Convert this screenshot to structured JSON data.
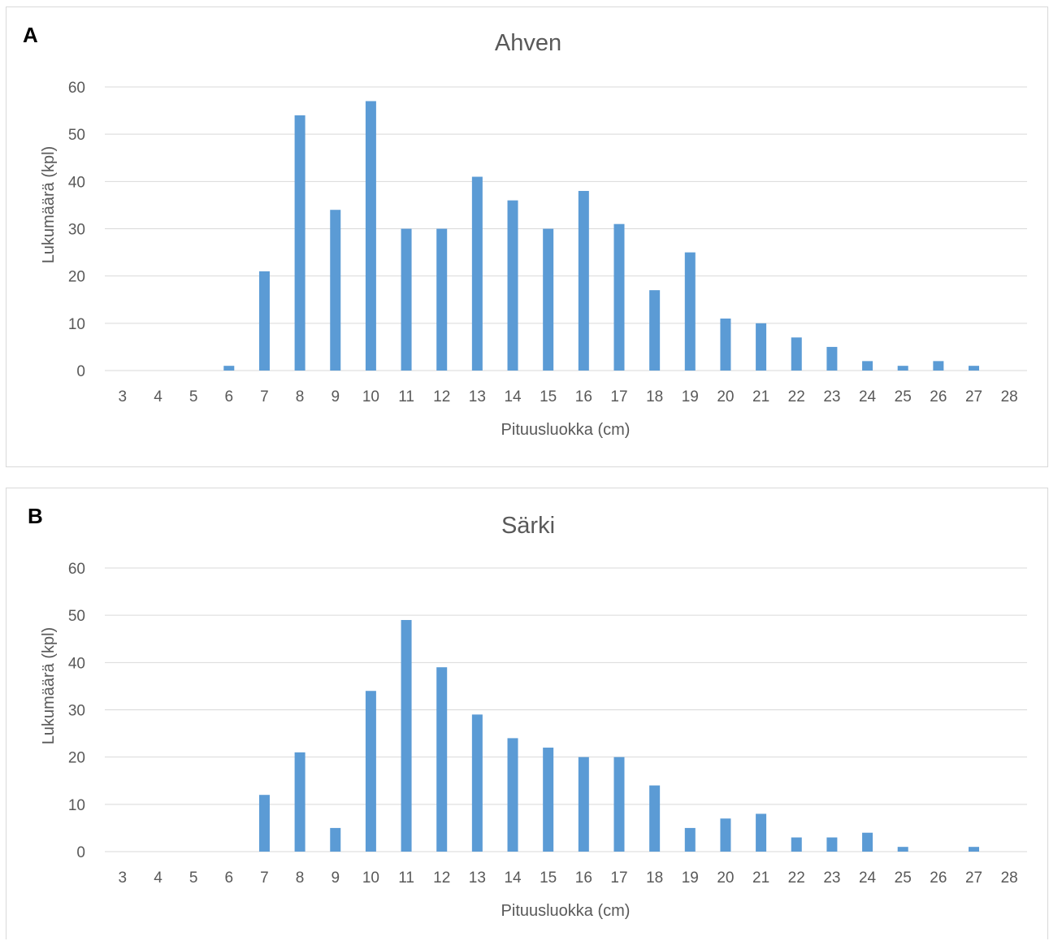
{
  "colors": {
    "bar": "#5b9bd5",
    "grid": "#d9d9d9",
    "text": "#595959"
  },
  "chart_data": [
    {
      "panel_label": "A",
      "type": "bar",
      "title": "Ahven",
      "xlabel": "Pituusluokka (cm)",
      "ylabel": "Lukumäärä (kpl)",
      "ylim": [
        0,
        60
      ],
      "yticks": [
        0,
        10,
        20,
        30,
        40,
        50,
        60
      ],
      "grid": true,
      "categories": [
        "3",
        "4",
        "5",
        "6",
        "7",
        "8",
        "9",
        "10",
        "11",
        "12",
        "13",
        "14",
        "15",
        "16",
        "17",
        "18",
        "19",
        "20",
        "21",
        "22",
        "23",
        "24",
        "25",
        "26",
        "27",
        "28"
      ],
      "values": [
        0,
        0,
        0,
        1,
        21,
        54,
        34,
        57,
        30,
        30,
        41,
        36,
        30,
        38,
        31,
        17,
        25,
        11,
        10,
        7,
        5,
        2,
        1,
        2,
        1,
        0
      ]
    },
    {
      "panel_label": "B",
      "type": "bar",
      "title": "Särki",
      "xlabel": "Pituusluokka (cm)",
      "ylabel": "Lukumäärä (kpl)",
      "ylim": [
        0,
        60
      ],
      "yticks": [
        0,
        10,
        20,
        30,
        40,
        50,
        60
      ],
      "grid": true,
      "categories": [
        "3",
        "4",
        "5",
        "6",
        "7",
        "8",
        "9",
        "10",
        "11",
        "12",
        "13",
        "14",
        "15",
        "16",
        "17",
        "18",
        "19",
        "20",
        "21",
        "22",
        "23",
        "24",
        "25",
        "26",
        "27",
        "28"
      ],
      "values": [
        0,
        0,
        0,
        0,
        12,
        21,
        5,
        34,
        49,
        39,
        29,
        24,
        22,
        20,
        20,
        14,
        5,
        7,
        8,
        3,
        3,
        4,
        1,
        0,
        1,
        0
      ]
    }
  ]
}
